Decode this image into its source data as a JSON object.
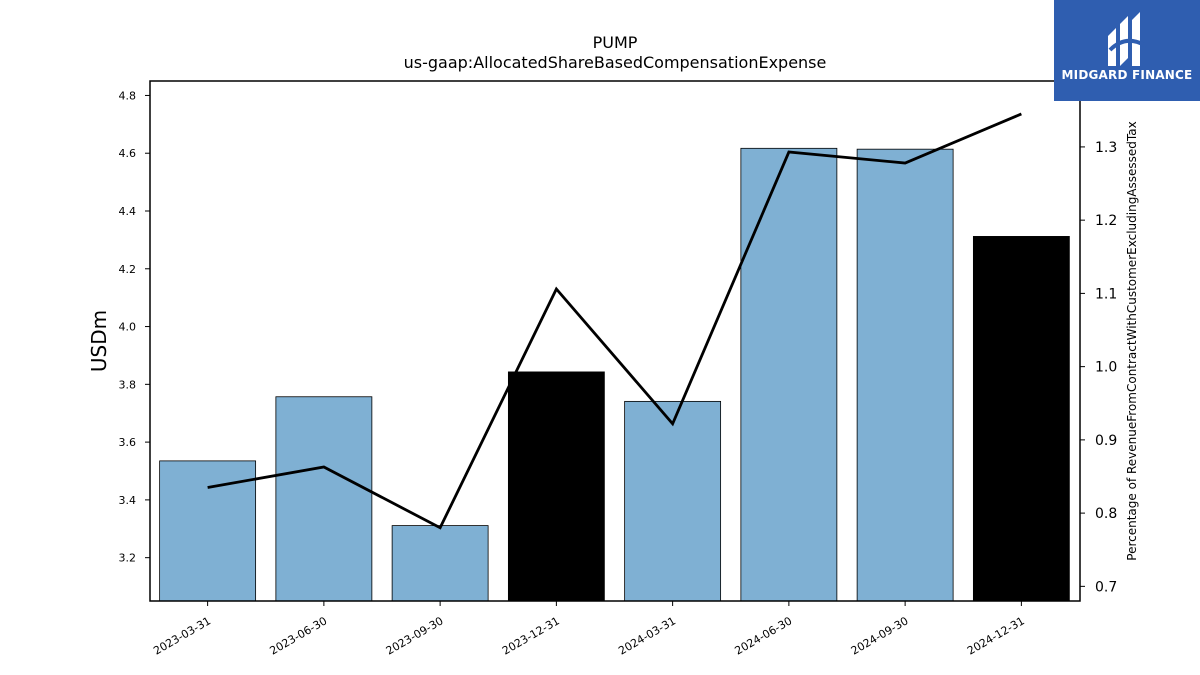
{
  "brand": {
    "name": "MIDGARD FINANCE",
    "logo_icon": "midgard-logo-icon",
    "color": "#2f5eb0"
  },
  "chart_data": {
    "type": "bar",
    "title": "PUMP",
    "subtitle": "us-gaap:AllocatedShareBasedCompensationExpense",
    "ylabel": "USDm",
    "ylabel_right": "Percentage of RevenueFromContractWithCustomerExcludingAssessedTax",
    "categories": [
      "2023-03-31",
      "2023-06-30",
      "2023-09-30",
      "2023-12-31",
      "2024-03-31",
      "2024-06-30",
      "2024-09-30",
      "2024-12-31"
    ],
    "series": [
      {
        "kind": "bar",
        "axis": "left",
        "values": [
          3.535,
          3.757,
          3.311,
          3.843,
          3.741,
          4.617,
          4.614,
          4.312
        ],
        "colors": [
          "#7fb0d3",
          "#7fb0d3",
          "#7fb0d3",
          "#000000",
          "#7fb0d3",
          "#7fb0d3",
          "#7fb0d3",
          "#000000"
        ]
      },
      {
        "kind": "line",
        "axis": "right",
        "color": "#000000",
        "values": [
          0.835,
          0.863,
          0.78,
          1.106,
          0.922,
          1.293,
          1.278,
          1.345
        ]
      }
    ],
    "ylim_left": [
      3.05,
      4.85
    ],
    "ylim_right": [
      0.68,
      1.39
    ],
    "yticks_left": [
      "3.2",
      "3.4",
      "3.6",
      "3.8",
      "4.0",
      "4.2",
      "4.4",
      "4.6",
      "4.8"
    ],
    "yticks_right": [
      "0.7",
      "0.8",
      "0.9",
      "1.0",
      "1.1",
      "1.2",
      "1.3"
    ],
    "grid": false,
    "legend": "none"
  }
}
